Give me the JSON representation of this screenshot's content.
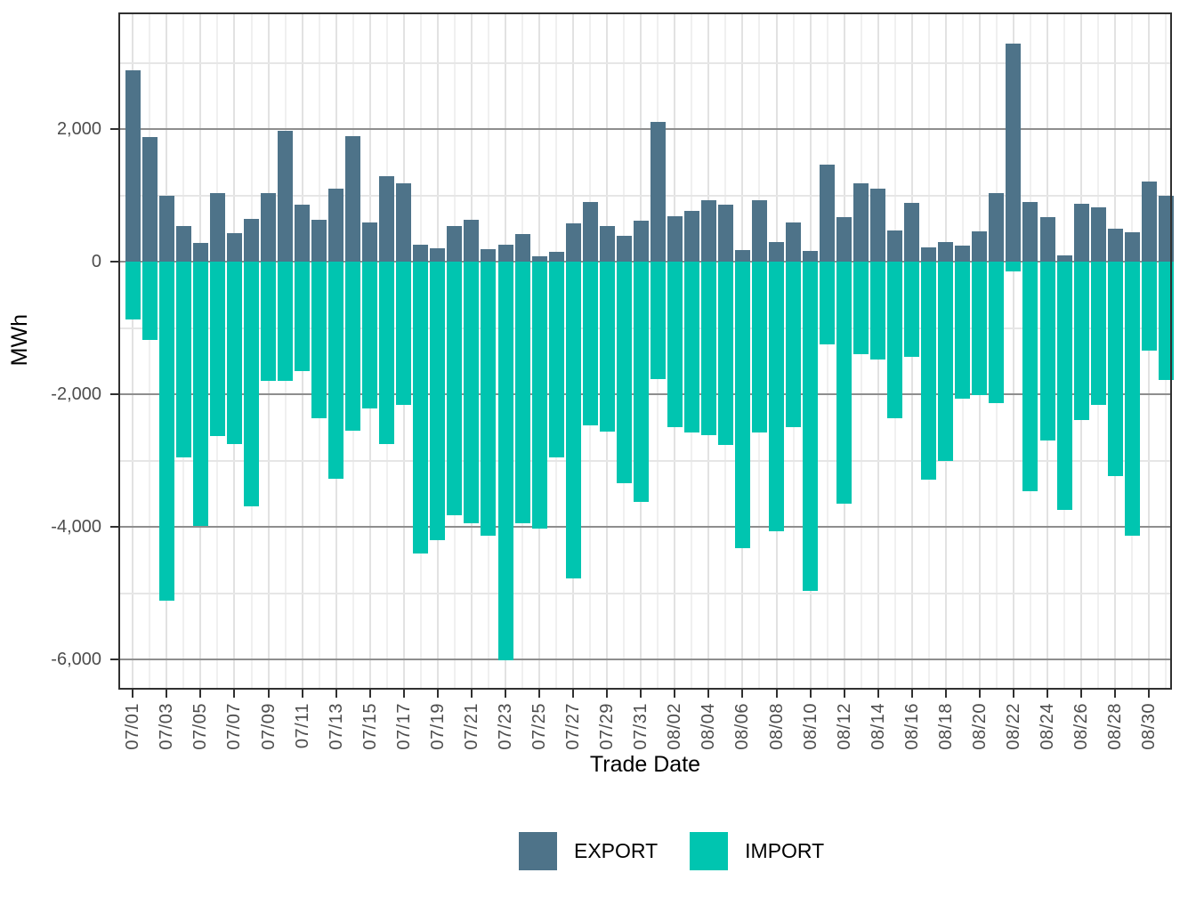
{
  "chart_data": {
    "type": "bar",
    "title": "",
    "xlabel": "Trade Date",
    "ylabel": "MWh",
    "unit": "MWh",
    "ylim": [
      -6455,
      3760
    ],
    "grid": true,
    "legend_position": "bottom",
    "yticks_major": [
      2000,
      0,
      -2000,
      -4000,
      -6000
    ],
    "ytick_labels": [
      "2,000",
      "0",
      "-2,000",
      "-4,000",
      "-6,000"
    ],
    "yticks_minor": [
      3000,
      1000,
      -1000,
      -3000,
      -5000
    ],
    "xtick_every": 2,
    "categories": [
      "07/01",
      "07/02",
      "07/03",
      "07/04",
      "07/05",
      "07/06",
      "07/07",
      "07/08",
      "07/09",
      "07/10",
      "07/11",
      "07/12",
      "07/13",
      "07/14",
      "07/15",
      "07/16",
      "07/17",
      "07/18",
      "07/19",
      "07/20",
      "07/21",
      "07/22",
      "07/23",
      "07/24",
      "07/25",
      "07/26",
      "07/27",
      "07/28",
      "07/29",
      "07/30",
      "07/31",
      "08/01",
      "08/02",
      "08/03",
      "08/04",
      "08/05",
      "08/06",
      "08/07",
      "08/08",
      "08/09",
      "08/10",
      "08/11",
      "08/12",
      "08/13",
      "08/14",
      "08/15",
      "08/16",
      "08/17",
      "08/18",
      "08/19",
      "08/20",
      "08/21",
      "08/22",
      "08/23",
      "08/24",
      "08/25",
      "08/26",
      "08/27",
      "08/28",
      "08/29",
      "08/30",
      "08/31"
    ],
    "series": [
      {
        "name": "EXPORT",
        "color": "#4e7389",
        "values": [
          2890,
          1880,
          990,
          540,
          280,
          1035,
          430,
          650,
          1030,
          1975,
          855,
          630,
          1100,
          1895,
          590,
          1290,
          1180,
          260,
          200,
          540,
          630,
          195,
          260,
          420,
          80,
          155,
          585,
          900,
          535,
          395,
          620,
          2110,
          680,
          760,
          930,
          855,
          175,
          930,
          300,
          590,
          160,
          1465,
          670,
          1180,
          1105,
          475,
          890,
          210,
          295,
          245,
          460,
          1040,
          3290,
          900,
          675,
          95,
          870,
          825,
          500,
          440,
          1215,
          995
        ]
      },
      {
        "name": "IMPORT",
        "color": "#00c5b0",
        "values": [
          -875,
          -1175,
          -5115,
          -2945,
          -3985,
          -2630,
          -2750,
          -3690,
          -1795,
          -1795,
          -1650,
          -2365,
          -3270,
          -2550,
          -2220,
          -2745,
          -2165,
          -4395,
          -4200,
          -3830,
          -3950,
          -4130,
          -6015,
          -3945,
          -4025,
          -2950,
          -4780,
          -2470,
          -2565,
          -3340,
          -3620,
          -1770,
          -2495,
          -2575,
          -2610,
          -2770,
          -4325,
          -2570,
          -4070,
          -2500,
          -4970,
          -1245,
          -3645,
          -1390,
          -1475,
          -2365,
          -1435,
          -3290,
          -3000,
          -2060,
          -2015,
          -2130,
          -150,
          -3460,
          -2695,
          -3745,
          -2385,
          -2160,
          -3240,
          -4130,
          -1340,
          -1780
        ]
      }
    ]
  }
}
